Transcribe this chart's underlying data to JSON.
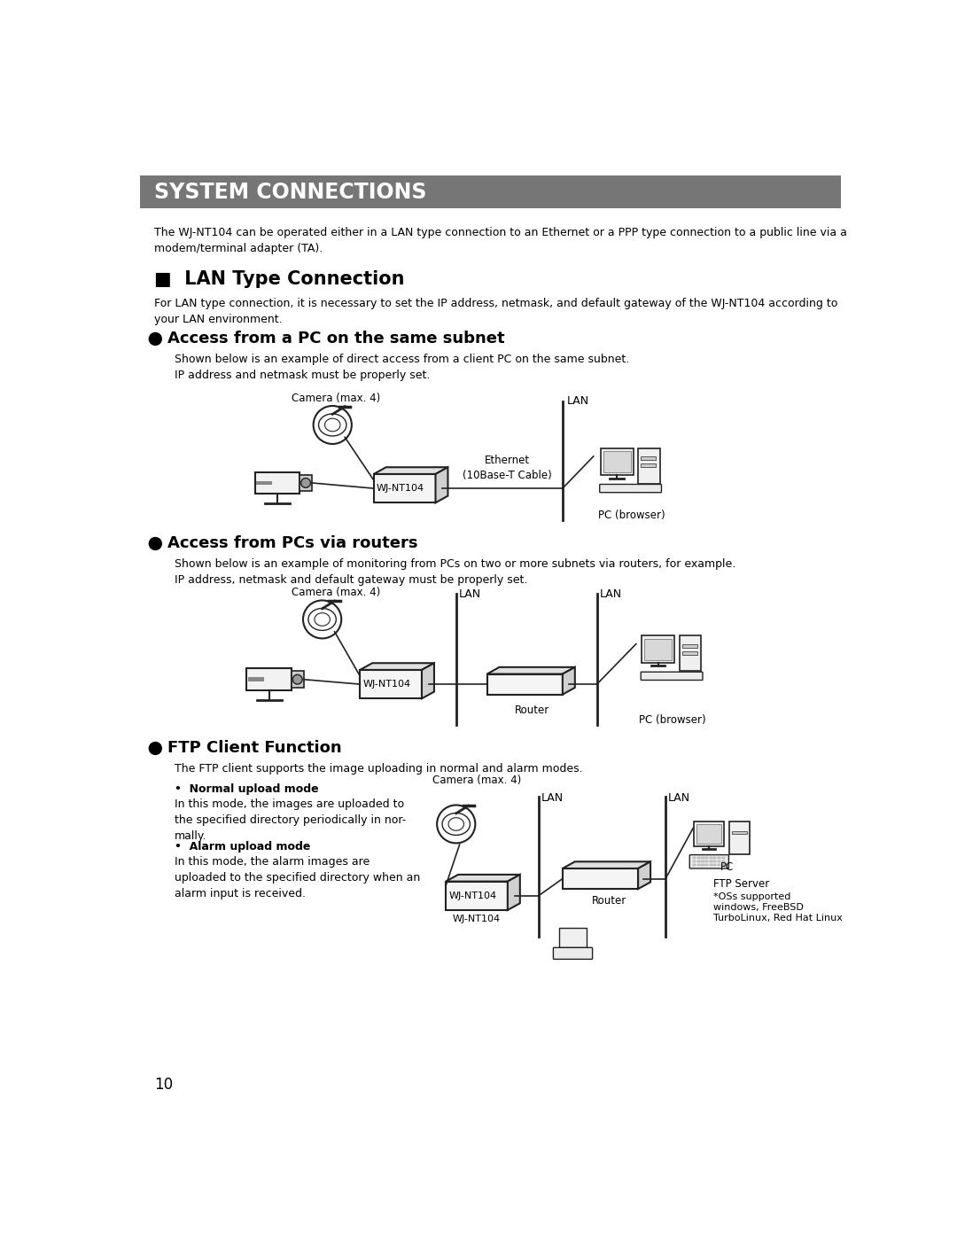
{
  "title": "SYSTEM CONNECTIONS",
  "title_bg": "#767676",
  "title_color": "#ffffff",
  "intro_text": "The WJ-NT104 can be operated either in a LAN type connection to an Ethernet or a PPP type connection to a public line via a\nmodem/terminal adapter (TA).",
  "section1_title": "■  LAN Type Connection",
  "section1_text": "For LAN type connection, it is necessary to set the IP address, netmask, and default gateway of the WJ-NT104 according to\nyour LAN environment.",
  "sub1_title": "Access from a PC on the same subnet",
  "sub1_text": "Shown below is an example of direct access from a client PC on the same subnet.\nIP address and netmask must be properly set.",
  "sub2_title": "Access from PCs via routers",
  "sub2_text": "Shown below is an example of monitoring from PCs on two or more subnets via routers, for example.\nIP address, netmask and default gateway must be properly set.",
  "sub3_title": "FTP Client Function",
  "sub3_text": "The FTP client supports the image uploading in normal and alarm modes.",
  "normal_upload_title": "Normal upload mode",
  "normal_upload_text": "In this mode, the images are uploaded to\nthe specified directory periodically in nor-\nmally.",
  "alarm_upload_title": "Alarm upload mode",
  "alarm_upload_text": "In this mode, the alarm images are\nuploaded to the specified directory when an\nalarm input is received.",
  "page_number": "10",
  "lc": "#222222",
  "lw": 1.2
}
